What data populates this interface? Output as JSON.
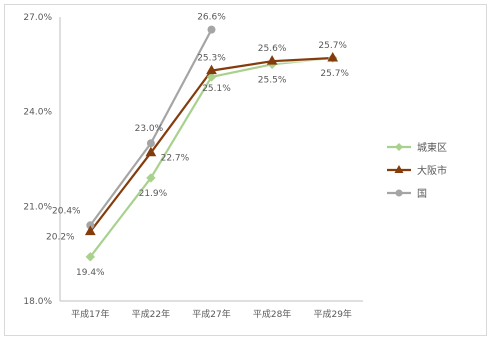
{
  "chart_data": {
    "type": "line",
    "categories": [
      "平成17年",
      "平成22年",
      "平成27年",
      "平成28年",
      "平成29年"
    ],
    "ylim": [
      18.0,
      27.0
    ],
    "yticks": [
      "18.0%",
      "21.0%",
      "24.0%",
      "27.0%"
    ],
    "grid": false,
    "legend_position": "right",
    "series": [
      {
        "name": "城東区",
        "color": "#a9d18e",
        "marker": "diamond",
        "values": [
          19.4,
          21.9,
          25.1,
          25.5,
          25.7
        ],
        "labels": [
          "19.4%",
          "21.9%",
          "25.1%",
          "25.5%",
          "25.7%"
        ]
      },
      {
        "name": "大阪市",
        "color": "#843c0c",
        "marker": "triangle",
        "values": [
          20.2,
          22.7,
          25.3,
          25.6,
          25.7
        ],
        "labels": [
          "20.2%",
          "22.7%",
          "25.3%",
          "25.6%",
          "25.7%"
        ]
      },
      {
        "name": "国",
        "color": "#a5a5a5",
        "marker": "circle",
        "values": [
          20.4,
          23.0,
          26.6,
          null,
          null
        ],
        "labels": [
          "20.4%",
          "23.0%",
          "26.6%",
          "",
          ""
        ]
      }
    ]
  }
}
